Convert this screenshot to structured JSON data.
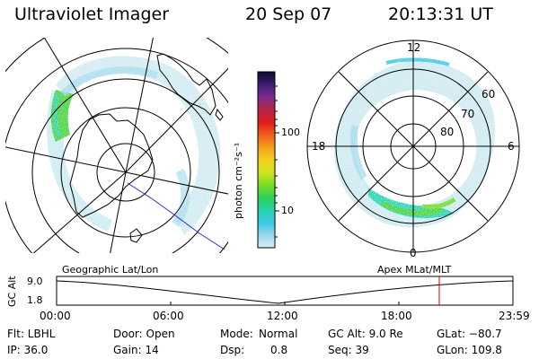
{
  "header": {
    "instrument": "Ultraviolet Imager",
    "date": "20 Sep 07",
    "time": "20:13:31 UT"
  },
  "colorbar": {
    "unit_label": "photon cm⁻²s⁻¹",
    "ticks": [
      "100",
      "10"
    ],
    "colors": [
      "#0a0a2e",
      "#3b1d6e",
      "#7a2b8f",
      "#b0254a",
      "#e01e1e",
      "#f2601a",
      "#f5a01a",
      "#f5d020",
      "#c8e61e",
      "#6edc28",
      "#28d25a",
      "#28d2b4",
      "#3cc8e6",
      "#9ad7ec",
      "#d9eef3"
    ]
  },
  "left_map": {
    "caption": "Geographic Lat/Lon",
    "aurora_color": "#46d23c"
  },
  "right_map": {
    "caption": "Apex MLat/MLT",
    "mlt_labels": {
      "top": "12",
      "left": "18",
      "right": "6",
      "bottom": "0"
    },
    "lat_labels": [
      "60",
      "70",
      "80"
    ]
  },
  "altitude_plot": {
    "ylabel": "GC Alt",
    "yticks": [
      "9.0",
      "1.8"
    ],
    "xticks": [
      "00:00",
      "06:00",
      "12:00",
      "18:00",
      "23:59"
    ],
    "marker_color": "#cc0000"
  },
  "status": {
    "flt": "Flt: LBHL",
    "ip": "IP: 36.0",
    "door": "Door: Open",
    "gain": "Gain: 14",
    "mode_label": "Mode:",
    "mode_value": "Normal",
    "dsp_label": "Dsp:",
    "dsp_value": "0.8",
    "gc_alt": "GC Alt: 9.0 Re",
    "seq": "Seq: 39",
    "glat": "GLat: −80.7",
    "glon": "GLon: 109.8"
  }
}
